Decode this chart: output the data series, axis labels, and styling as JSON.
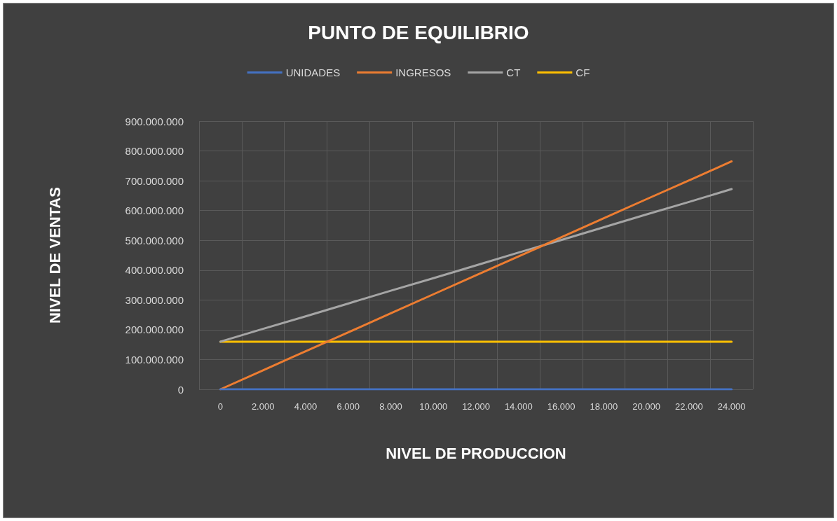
{
  "chart_data": {
    "type": "line",
    "title": "PUNTO DE EQUILIBRIO",
    "xlabel": "NIVEL DE PRODUCCION",
    "ylabel": "NIVEL DE VENTAS",
    "categories": [
      "0",
      "2.000",
      "4.000",
      "6.000",
      "8.000",
      "10.000",
      "12.000",
      "14.000",
      "16.000",
      "18.000",
      "20.000",
      "22.000",
      "24.000"
    ],
    "series": [
      {
        "name": "UNIDADES",
        "color": "#4472c4",
        "values": [
          0,
          0,
          0,
          0,
          0,
          0,
          0,
          0,
          0,
          0,
          0,
          0,
          0
        ]
      },
      {
        "name": "INGRESOS",
        "color": "#ed7d31",
        "values": [
          0,
          64000000,
          128000000,
          191000000,
          255000000,
          319000000,
          383000000,
          446000000,
          510000000,
          574000000,
          638000000,
          701000000,
          765000000
        ]
      },
      {
        "name": "CT",
        "color": "#a5a5a5",
        "values": [
          160000000,
          203000000,
          245000000,
          288000000,
          331000000,
          373000000,
          416000000,
          459000000,
          501000000,
          544000000,
          587000000,
          629000000,
          672000000
        ]
      },
      {
        "name": "CF",
        "color": "#ffc000",
        "values": [
          160000000,
          160000000,
          160000000,
          160000000,
          160000000,
          160000000,
          160000000,
          160000000,
          160000000,
          160000000,
          160000000,
          160000000,
          160000000
        ]
      }
    ],
    "ylim": [
      0,
      900000000
    ],
    "yticks": [
      {
        "value": 0,
        "label": "0"
      },
      {
        "value": 100000000,
        "label": "100.000.000"
      },
      {
        "value": 200000000,
        "label": "200.000.000"
      },
      {
        "value": 300000000,
        "label": "300.000.000"
      },
      {
        "value": 400000000,
        "label": "400.000.000"
      },
      {
        "value": 500000000,
        "label": "500.000.000"
      },
      {
        "value": 600000000,
        "label": "600.000.000"
      },
      {
        "value": 700000000,
        "label": "700.000.000"
      },
      {
        "value": 800000000,
        "label": "800.000.000"
      },
      {
        "value": 900000000,
        "label": "900.000.000"
      }
    ],
    "grid": true,
    "legend": "top",
    "marker": "none",
    "line_style": "solid"
  }
}
